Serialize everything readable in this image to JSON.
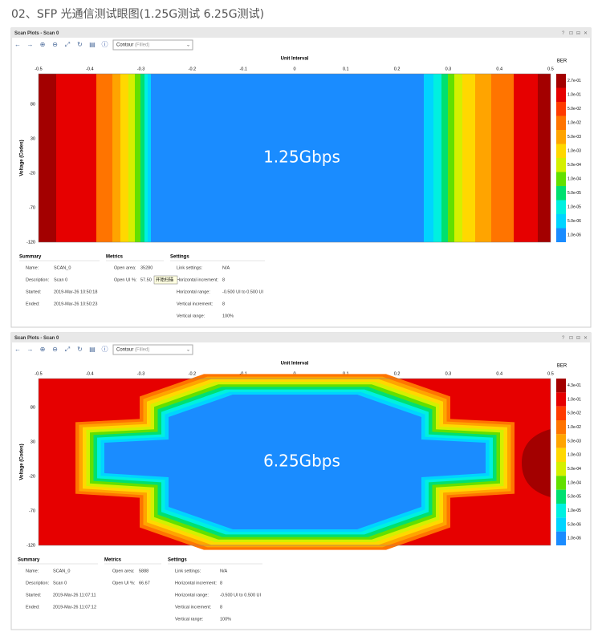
{
  "heading": "02、SFP 光通信测试眼图(1.25G测试   6.25G测试)",
  "panels": [
    {
      "window_title": "Scan Plots - Scan 0",
      "view_mode": "Contour",
      "view_option": "(Filled)",
      "x_axis_title": "Unit Interval",
      "x_ticks": [
        "-0.5",
        "-0.4",
        "-0.3",
        "-0.2",
        "-0.1",
        "0",
        "0.1",
        "0.2",
        "0.3",
        "0.4",
        "0.5"
      ],
      "y_axis_title": "Voltage (Codes)",
      "y_ticks": [
        "80",
        "30",
        "-20",
        "-70",
        "-120"
      ],
      "legend_title": "BER",
      "legend_labels": [
        "2.7e-01",
        "1.0e-01",
        "5.0e-02",
        "1.0e-02",
        "5.0e-03",
        "1.0e-03",
        "5.0e-04",
        "1.0e-04",
        "5.0e-05",
        "1.0e-05",
        "5.0e-06",
        "1.0e-06"
      ],
      "overlay_label": "1.25Gbps",
      "tooltip": "开始扫描",
      "summary": {
        "title": "Summary",
        "rows": [
          [
            "Name:",
            "SCAN_0"
          ],
          [
            "Description:",
            "Scan 0"
          ],
          [
            "Started:",
            "2019-Mar-26 10:50:18"
          ],
          [
            "Ended:",
            "2019-Mar-26 10:50:23"
          ]
        ]
      },
      "metrics": {
        "title": "Metrics",
        "rows": [
          [
            "Open area:",
            "35280"
          ],
          [
            "Open UI %:",
            "57.50"
          ]
        ]
      },
      "settings": {
        "title": "Settings",
        "rows": [
          [
            "Link settings:",
            "N/A"
          ],
          [
            "Horizontal increment:",
            "8"
          ],
          [
            "Horizontal range:",
            "-0.500 UI to 0.500 UI"
          ],
          [
            "Vertical increment:",
            "8"
          ],
          [
            "Vertical range:",
            "100%"
          ]
        ]
      }
    },
    {
      "window_title": "Scan Plots - Scan 0",
      "view_mode": "Contour",
      "view_option": "(Filled)",
      "x_axis_title": "Unit Interval",
      "x_ticks": [
        "-0.5",
        "-0.4",
        "-0.3",
        "-0.2",
        "-0.1",
        "0",
        "0.1",
        "0.2",
        "0.3",
        "0.4",
        "0.5"
      ],
      "y_axis_title": "Voltage (Codes)",
      "y_ticks": [
        "80",
        "30",
        "-20",
        "-70",
        "-120"
      ],
      "legend_title": "BER",
      "legend_labels": [
        "4.3e-01",
        "1.0e-01",
        "5.0e-02",
        "1.0e-02",
        "5.0e-03",
        "1.0e-03",
        "5.0e-04",
        "1.0e-04",
        "5.0e-05",
        "1.0e-05",
        "5.0e-06",
        "1.0e-06"
      ],
      "overlay_label": "6.25Gbps",
      "summary": {
        "title": "Summary",
        "rows": [
          [
            "Name:",
            "SCAN_0"
          ],
          [
            "Description:",
            "Scan 0"
          ],
          [
            "Started:",
            "2019-Mar-26 11:07:11"
          ],
          [
            "Ended:",
            "2019-Mar-26 11:07:12"
          ]
        ]
      },
      "metrics": {
        "title": "Metrics",
        "rows": [
          [
            "Open area:",
            "5888"
          ],
          [
            "Open UI %:",
            "66.67"
          ]
        ]
      },
      "settings": {
        "title": "Settings",
        "rows": [
          [
            "Link settings:",
            "N/A"
          ],
          [
            "Horizontal increment:",
            "8"
          ],
          [
            "Horizontal range:",
            "-0.500 UI to 0.500 UI"
          ],
          [
            "Vertical increment:",
            "8"
          ],
          [
            "Vertical range:",
            "100%"
          ]
        ]
      }
    }
  ]
}
